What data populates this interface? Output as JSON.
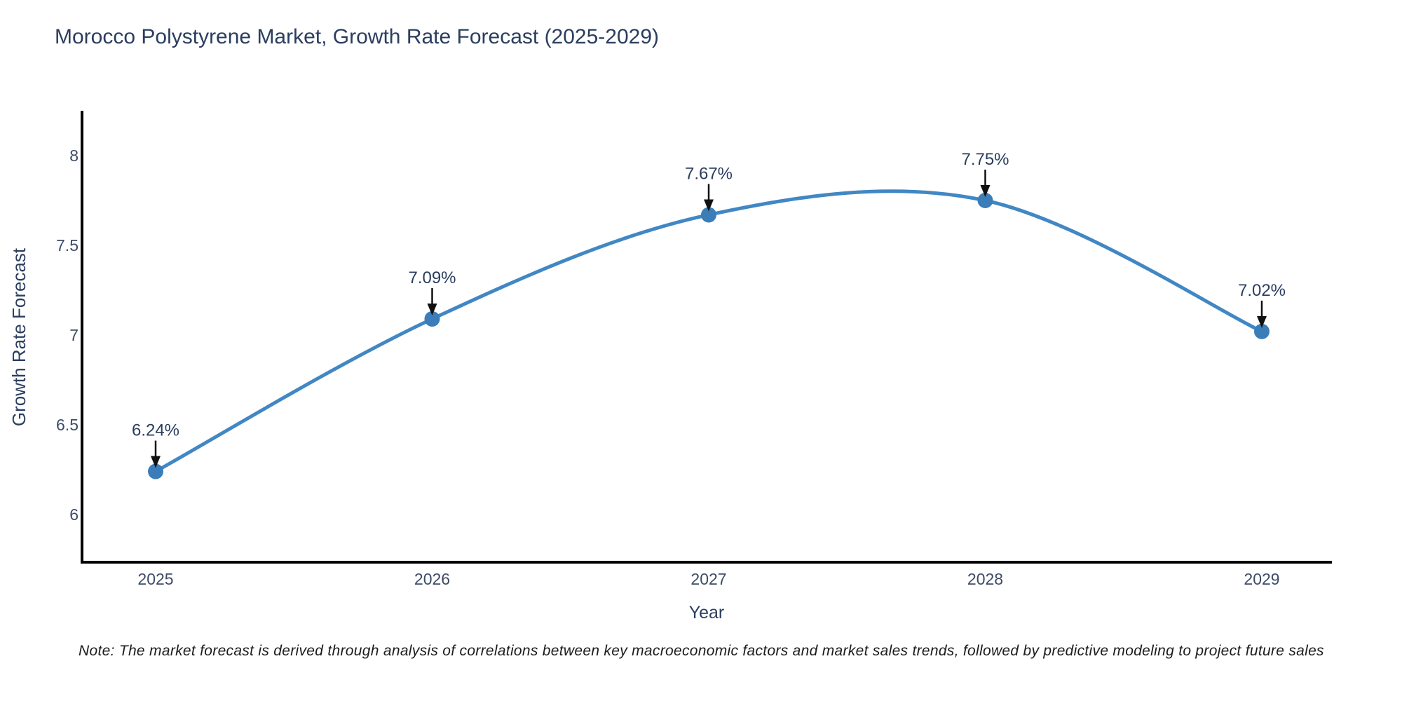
{
  "title": "Morocco Polystyrene Market, Growth Rate Forecast (2025-2029)",
  "note": "Note: The market forecast is derived through analysis of correlations between key macroeconomic factors and market sales trends, followed by predictive modeling to project future sales",
  "colors": {
    "background": "#ffffff",
    "line": "#4187c4",
    "marker": "#3b7db8",
    "axis_line": "#000000",
    "arrow": "#111111",
    "title_text": "#2b3e5f",
    "tick_text": "#3d4b66",
    "annotation_text": "#2b3e5f",
    "note_text": "#1c1c1c"
  },
  "chart_data": {
    "type": "line",
    "title": "Morocco Polystyrene Market, Growth Rate Forecast (2025-2029)",
    "xlabel": "Year",
    "ylabel": "Growth Rate Forecast",
    "x": [
      2025,
      2026,
      2027,
      2028,
      2029
    ],
    "values": [
      6.24,
      7.09,
      7.67,
      7.75,
      7.02
    ],
    "point_labels": [
      "6.24%",
      "7.09%",
      "7.67%",
      "7.75%",
      "7.02%"
    ],
    "x_ticks": [
      "2025",
      "2026",
      "2027",
      "2028",
      "2029"
    ],
    "y_ticks": [
      8,
      7.5,
      7,
      6.5,
      6
    ],
    "ylim": [
      5.75,
      8.25
    ],
    "grid": false,
    "legend": "none",
    "line_shape": "spline",
    "markers": true,
    "annotations": "value labels with downward arrows above each point"
  }
}
